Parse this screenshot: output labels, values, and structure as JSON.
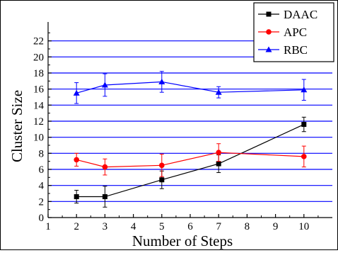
{
  "chart_data": {
    "type": "line",
    "title": "",
    "xlabel": "Number of Steps",
    "ylabel": "Cluster Size",
    "xlim": [
      1,
      11
    ],
    "ylim": [
      0,
      24
    ],
    "x_ticks": [
      1,
      2,
      3,
      4,
      5,
      6,
      7,
      8,
      9,
      10
    ],
    "y_ticks": [
      0,
      2,
      4,
      6,
      8,
      10,
      12,
      14,
      16,
      18,
      20,
      22
    ],
    "grid": "horizontal",
    "grid_color": "#0000ff",
    "legend_position": "top-right",
    "series": [
      {
        "name": "DAAC",
        "color": "#000000",
        "marker": "square",
        "x": [
          2,
          3,
          5,
          7,
          10
        ],
        "y": [
          2.6,
          2.6,
          4.7,
          6.7,
          11.6
        ],
        "err": [
          0.8,
          1.3,
          1.1,
          1.1,
          0.9
        ]
      },
      {
        "name": "APC",
        "color": "#ff0000",
        "marker": "circle",
        "x": [
          2,
          3,
          5,
          7,
          10
        ],
        "y": [
          7.2,
          6.3,
          6.5,
          8.1,
          7.6
        ],
        "err": [
          0.8,
          1.0,
          1.4,
          1.1,
          1.3
        ]
      },
      {
        "name": "RBC",
        "color": "#0000ff",
        "marker": "triangle",
        "x": [
          2,
          3,
          5,
          7,
          10
        ],
        "y": [
          15.5,
          16.5,
          16.9,
          15.6,
          15.9
        ],
        "err": [
          1.3,
          1.4,
          1.3,
          0.7,
          1.3
        ]
      }
    ]
  }
}
